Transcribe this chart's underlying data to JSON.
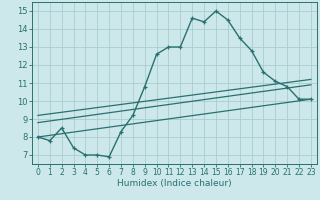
{
  "xlabel": "Humidex (Indice chaleur)",
  "ylabel": "",
  "background_color": "#cce8ea",
  "grid_color": "#aacdd0",
  "line_color": "#2a7070",
  "xlim": [
    -0.5,
    23.5
  ],
  "ylim": [
    6.5,
    15.5
  ],
  "xticks": [
    0,
    1,
    2,
    3,
    4,
    5,
    6,
    7,
    8,
    9,
    10,
    11,
    12,
    13,
    14,
    15,
    16,
    17,
    18,
    19,
    20,
    21,
    22,
    23
  ],
  "yticks": [
    7,
    8,
    9,
    10,
    11,
    12,
    13,
    14,
    15
  ],
  "line1_x": [
    0,
    1,
    2,
    3,
    4,
    5,
    6,
    7,
    8,
    9,
    10,
    11,
    12,
    13,
    14,
    15,
    16,
    17,
    18,
    19,
    20,
    21,
    22,
    23
  ],
  "line1_y": [
    8.0,
    7.8,
    8.5,
    7.4,
    7.0,
    7.0,
    6.9,
    8.3,
    9.2,
    10.8,
    12.6,
    13.0,
    13.0,
    14.6,
    14.4,
    15.0,
    14.5,
    13.5,
    12.8,
    11.6,
    11.1,
    10.8,
    10.1,
    10.1
  ],
  "line2_x": [
    0,
    23
  ],
  "line2_y": [
    8.0,
    10.1
  ],
  "line3_x": [
    0,
    23
  ],
  "line3_y": [
    8.8,
    10.9
  ],
  "line4_x": [
    0,
    23
  ],
  "line4_y": [
    9.2,
    11.2
  ]
}
